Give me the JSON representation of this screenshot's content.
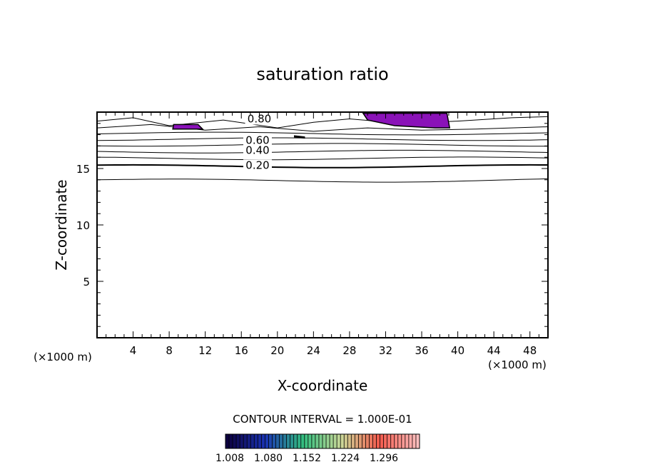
{
  "chart_data": {
    "type": "contour",
    "title": "saturation ratio",
    "xlabel": "X-coordinate",
    "ylabel": "Z-coordinate",
    "x_unit_left": "(×1000 m)",
    "x_unit_right": "(×1000 m)",
    "xlim": [
      0,
      50
    ],
    "ylim": [
      0,
      20
    ],
    "x_ticks": [
      4,
      8,
      12,
      16,
      20,
      24,
      28,
      32,
      36,
      40,
      44,
      48
    ],
    "y_ticks": [
      5,
      10,
      15
    ],
    "contour_interval_text": "CONTOUR INTERVAL = 1.000E-01",
    "contour_labels": [
      {
        "text": "0.80",
        "x": 18.0,
        "z": 19.4
      },
      {
        "text": "0.60",
        "x": 17.8,
        "z": 17.5
      },
      {
        "text": "0.40",
        "x": 17.8,
        "z": 16.6
      },
      {
        "text": "0.20",
        "x": 17.8,
        "z": 15.3
      }
    ],
    "shaded_regions": [
      {
        "points": [
          [
            29.5,
            19.9
          ],
          [
            38.8,
            19.9
          ],
          [
            39.1,
            18.6
          ],
          [
            37.5,
            18.6
          ],
          [
            33,
            18.8
          ],
          [
            30,
            19.3
          ]
        ]
      },
      {
        "points": [
          [
            8.5,
            18.9
          ],
          [
            11.2,
            18.9
          ],
          [
            11.7,
            18.5
          ],
          [
            8.4,
            18.5
          ]
        ]
      },
      {
        "points": [
          [
            21.9,
            17.9
          ],
          [
            23,
            17.8
          ],
          [
            23,
            17.7
          ],
          [
            21.9,
            17.8
          ]
        ]
      }
    ],
    "colorbar": {
      "tick_labels": [
        "1.008",
        "1.080",
        "1.152",
        "1.224",
        "1.296"
      ],
      "fill_color": "#8a12b8"
    }
  }
}
